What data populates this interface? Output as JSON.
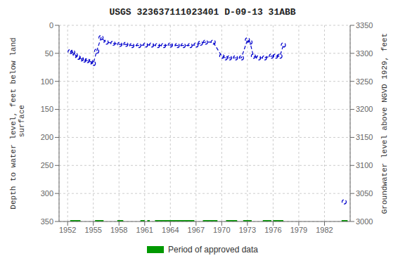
{
  "chart_data": {
    "type": "line",
    "title": "USGS 323637111023401 D-09-13 31ABB",
    "y_label": "Depth to water level, feet below land\n surface",
    "y2_label": "Groundwater level above NGVD 1929, feet",
    "xlim": [
      1951,
      1985
    ],
    "xticks": [
      1952,
      1955,
      1958,
      1961,
      1964,
      1967,
      1970,
      1973,
      1976,
      1979,
      1982
    ],
    "ylim": [
      350,
      0
    ],
    "yticks": [
      0,
      50,
      100,
      150,
      200,
      250,
      300,
      350
    ],
    "y2lim": [
      3000,
      3350
    ],
    "y2ticks": [
      3000,
      3050,
      3100,
      3150,
      3200,
      3250,
      3300,
      3350
    ],
    "grid": true,
    "legend": "bottom",
    "series": [
      {
        "x": [
          1952.3,
          1952.6,
          1952.9,
          1953.2,
          1953.6,
          1953.9,
          1954.3,
          1954.7,
          1955.0,
          1955.4,
          1955.9,
          1956.5,
          1957.3,
          1958.1,
          1958.8,
          1959.5,
          1960.3,
          1961.1,
          1961.8,
          1962.5,
          1963.2,
          1964.0,
          1964.8,
          1965.5,
          1966.3,
          1967.0,
          1967.5,
          1968.1,
          1969.0,
          1970.0,
          1970.4,
          1970.9,
          1971.6,
          1972.3,
          1973.0,
          1973.3,
          1973.7,
          1974.3,
          1975.0,
          1975.8,
          1976.3,
          1976.8,
          1977.2
        ],
        "values": [
          47,
          48,
          53,
          57,
          60,
          62,
          63,
          65,
          68,
          46,
          22,
          30,
          32,
          34,
          34,
          36,
          36,
          35,
          35,
          36,
          36,
          35,
          36,
          36,
          36,
          35,
          32,
          30,
          30,
          55,
          58,
          58,
          58,
          58,
          26,
          30,
          55,
          58,
          58,
          55,
          55,
          55,
          35
        ],
        "color": "#0000cc",
        "line_style": "dashed",
        "marker": "circle"
      },
      {
        "x": [
          1984.3
        ],
        "values": [
          315
        ],
        "color": "#0000cc",
        "line_style": "dashed",
        "marker": "circle"
      }
    ],
    "approved_periods": {
      "name": "Period of approved data",
      "color": "#009900",
      "ranges": [
        [
          1952.3,
          1953.5
        ],
        [
          1955.2,
          1956.2
        ],
        [
          1957.8,
          1958.5
        ],
        [
          1960.5,
          1961.0
        ],
        [
          1961.3,
          1961.6
        ],
        [
          1962.2,
          1966.8
        ],
        [
          1967.8,
          1969.5
        ],
        [
          1970.5,
          1971.8
        ],
        [
          1972.5,
          1973.5
        ],
        [
          1974.8,
          1975.8
        ],
        [
          1976.0,
          1977.2
        ],
        [
          1984.0,
          1984.7
        ]
      ],
      "y": 350,
      "height": 5
    }
  }
}
